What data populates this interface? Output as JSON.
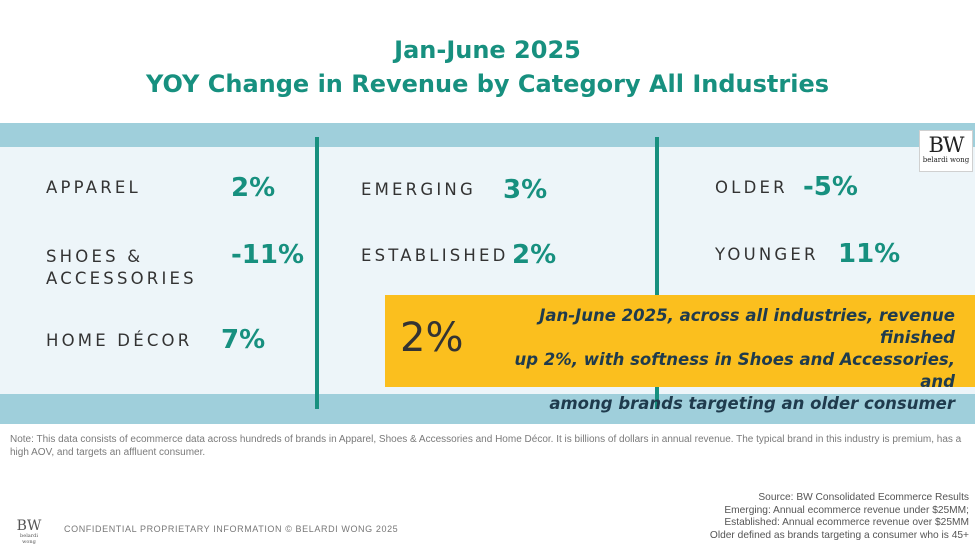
{
  "title": {
    "line1": "Jan-June 2025",
    "line2": "YOY Change in Revenue by Category All Industries"
  },
  "categories": {
    "apparel": {
      "label": "APPAREL",
      "value": "2%"
    },
    "shoes": {
      "label_line1": "SHOES &",
      "label_line2": "ACCESSORIES",
      "value": "-11%"
    },
    "home": {
      "label": "HOME DÉCOR",
      "value": "7%"
    },
    "emerging": {
      "label": "EMERGING",
      "value": "3%"
    },
    "established": {
      "label": "ESTABLISHED",
      "value": "2%"
    },
    "older": {
      "label": "OLDER",
      "value": "-5%"
    },
    "younger": {
      "label": "YOUNGER",
      "value": "11%"
    }
  },
  "callout": {
    "big_value": "2%",
    "line1": "Jan-June 2025, across all industries, revenue finished",
    "line2": "up 2%, with softness in Shoes and Accessories, and",
    "line3": "among brands targeting an older consumer"
  },
  "logo": {
    "initials": "BW",
    "name": "belardi wong"
  },
  "note": "Note: This data consists of ecommerce data across hundreds of brands in Apparel, Shoes & Accessories and Home Décor. It is billions of dollars in annual revenue. The typical brand in this industry is premium, has a high AOV, and targets an affluent consumer.",
  "source": {
    "line1": "Source: BW Consolidated Ecommerce Results",
    "line2": "Emerging: Annual ecommerce revenue under $25MM;",
    "line3": "Established: Annual ecommerce revenue over $25MM",
    "line4": "Older defined as brands targeting a consumer who is 45+"
  },
  "footer": {
    "confidential": "CONFIDENTIAL PROPRIETARY INFORMATION © BELARDI WONG 2025"
  },
  "colors": {
    "teal": "#17907f",
    "band": "#9fcfdb",
    "panel": "#edf5f9",
    "callout": "#fbbf1e"
  }
}
